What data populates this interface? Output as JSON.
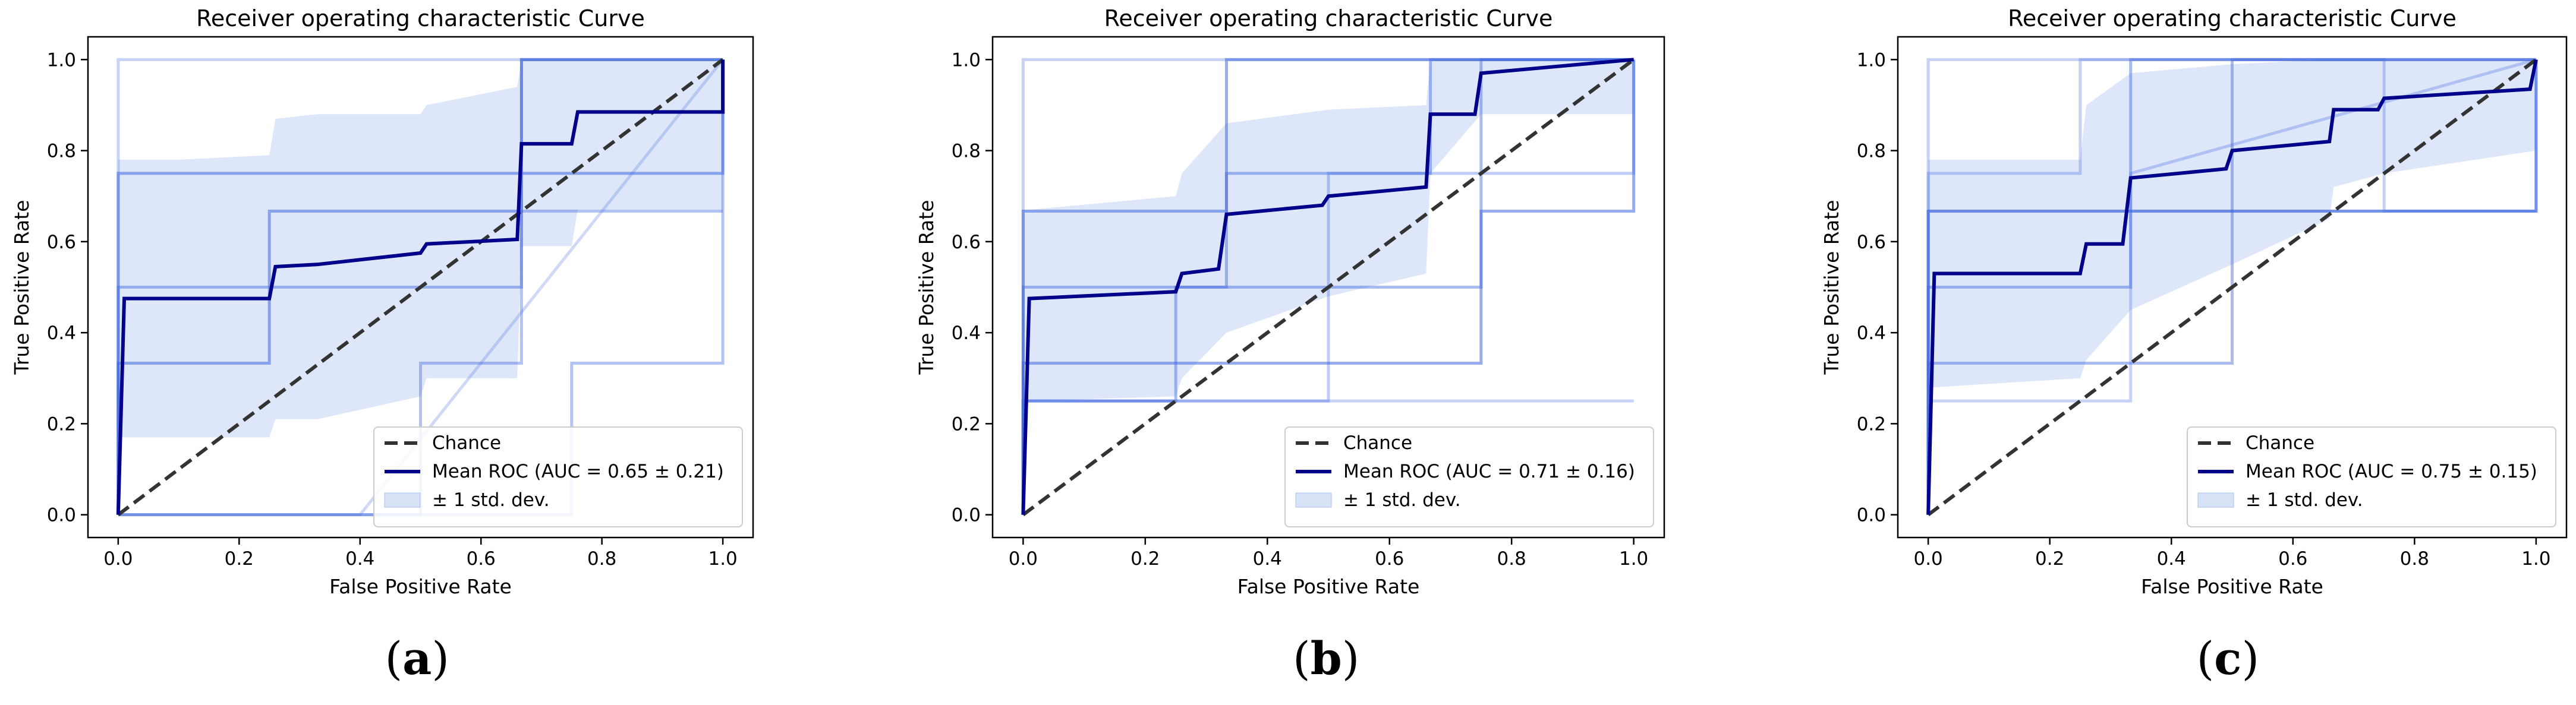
{
  "chart_data": [
    {
      "type": "line",
      "panel_label": "a",
      "title": "Receiver operating characteristic Curve",
      "xlabel": "False Positive Rate",
      "ylabel": "True Positive Rate",
      "xlim": [
        -0.05,
        1.05
      ],
      "ylim": [
        -0.05,
        1.05
      ],
      "xticks": [
        "0.0",
        "0.2",
        "0.4",
        "0.6",
        "0.8",
        "1.0"
      ],
      "yticks": [
        "0.0",
        "0.2",
        "0.4",
        "0.6",
        "0.8",
        "1.0"
      ],
      "legend_position": "lower-right",
      "legend": {
        "chance": "Chance",
        "mean": "Mean ROC (AUC = 0.65 ± 0.21)",
        "std": "± 1 std. dev."
      },
      "colors": {
        "fold": "#4169e1",
        "mean": "#00008b",
        "chance": "#333333",
        "band": "#a9c0f0"
      },
      "chance": {
        "x": [
          0,
          1
        ],
        "y": [
          0,
          1
        ]
      },
      "folds": [
        {
          "x": [
            0,
            0,
            1,
            1
          ],
          "y": [
            0,
            0.75,
            0.75,
            1
          ],
          "opacity": 0.55
        },
        {
          "x": [
            0,
            0,
            0.25,
            0.25,
            0.667,
            0.667,
            1,
            1
          ],
          "y": [
            0,
            0.333,
            0.333,
            0.667,
            0.667,
            1,
            1,
            1
          ],
          "opacity": 0.55
        },
        {
          "x": [
            0,
            0,
            0.667,
            0.667,
            1,
            1
          ],
          "y": [
            0,
            0.5,
            0.5,
            1,
            1,
            1
          ],
          "opacity": 0.45
        },
        {
          "x": [
            0,
            0,
            0.25,
            0.25,
            1
          ],
          "y": [
            0,
            1,
            1,
            1,
            1
          ],
          "opacity": 0.3
        },
        {
          "x": [
            0,
            0.75,
            0.75,
            1,
            1
          ],
          "y": [
            0,
            0,
            0.333,
            0.333,
            1
          ],
          "opacity": 0.4
        },
        {
          "x": [
            0,
            0.5,
            0.5,
            0.667,
            0.667,
            1
          ],
          "y": [
            0,
            0,
            0.333,
            0.333,
            0.667,
            0.667
          ],
          "opacity": 0.4
        },
        {
          "x": [
            0,
            0.4,
            1
          ],
          "y": [
            0,
            0,
            1
          ],
          "opacity": 0.25
        }
      ],
      "mean": {
        "x": [
          0,
          0.01,
          0.25,
          0.26,
          0.33,
          0.5,
          0.51,
          0.66,
          0.667,
          0.75,
          0.76,
          1,
          1
        ],
        "y": [
          0,
          0.475,
          0.475,
          0.545,
          0.55,
          0.575,
          0.595,
          0.605,
          0.815,
          0.815,
          0.885,
          0.885,
          1
        ]
      },
      "band": {
        "x": [
          0,
          0.01,
          0.1,
          0.25,
          0.26,
          0.33,
          0.5,
          0.51,
          0.66,
          0.667,
          0.75,
          0.76,
          1
        ],
        "upper": [
          0.78,
          0.78,
          0.78,
          0.79,
          0.87,
          0.88,
          0.88,
          0.9,
          0.94,
          1,
          1,
          1,
          1
        ],
        "lower": [
          0.17,
          0.17,
          0.17,
          0.17,
          0.21,
          0.21,
          0.26,
          0.3,
          0.3,
          0.59,
          0.59,
          0.67,
          0.67
        ]
      }
    },
    {
      "type": "line",
      "panel_label": "b",
      "title": "Receiver operating characteristic Curve",
      "xlabel": "False Positive Rate",
      "ylabel": "True Positive Rate",
      "xlim": [
        -0.05,
        1.05
      ],
      "ylim": [
        -0.05,
        1.05
      ],
      "xticks": [
        "0.0",
        "0.2",
        "0.4",
        "0.6",
        "0.8",
        "1.0"
      ],
      "yticks": [
        "0.0",
        "0.2",
        "0.4",
        "0.6",
        "0.8",
        "1.0"
      ],
      "legend_position": "lower-right",
      "legend": {
        "chance": "Chance",
        "mean": "Mean ROC (AUC = 0.71 ± 0.16)",
        "std": "± 1 std. dev."
      },
      "colors": {
        "fold": "#4169e1",
        "mean": "#00008b",
        "chance": "#333333",
        "band": "#a9c0f0"
      },
      "chance": {
        "x": [
          0,
          1
        ],
        "y": [
          0,
          1
        ]
      },
      "folds": [
        {
          "x": [
            0,
            0,
            0.333,
            0.333,
            1,
            1
          ],
          "y": [
            0,
            0.667,
            0.667,
            1,
            1,
            1
          ],
          "opacity": 0.55
        },
        {
          "x": [
            0,
            0,
            0.25,
            0.25,
            0.75,
            0.75,
            1
          ],
          "y": [
            0,
            0.25,
            0.25,
            0.5,
            0.5,
            1,
            1
          ],
          "opacity": 0.45
        },
        {
          "x": [
            0,
            0,
            0.333,
            0.333,
            0.667,
            0.667,
            1,
            1
          ],
          "y": [
            0,
            0.5,
            0.5,
            0.75,
            0.75,
            1,
            1,
            1
          ],
          "opacity": 0.45
        },
        {
          "x": [
            0,
            0,
            0.75,
            0.75,
            1,
            1
          ],
          "y": [
            0,
            0.333,
            0.333,
            0.667,
            0.667,
            1
          ],
          "opacity": 0.55
        },
        {
          "x": [
            0,
            0,
            1,
            1
          ],
          "y": [
            0,
            1,
            1,
            1
          ],
          "opacity": 0.3
        },
        {
          "x": [
            0,
            0,
            0.5,
            0.5,
            1,
            1
          ],
          "y": [
            0,
            0.25,
            0.25,
            0.75,
            0.75,
            1
          ],
          "opacity": 0.35
        },
        {
          "x": [
            0,
            0,
            0.667,
            0.667,
            1
          ],
          "y": [
            0,
            0.25,
            0.25,
            0.25,
            0.25
          ],
          "opacity": 0.3
        }
      ],
      "mean": {
        "x": [
          0,
          0.01,
          0.25,
          0.26,
          0.32,
          0.333,
          0.49,
          0.5,
          0.66,
          0.667,
          0.74,
          0.75,
          1
        ],
        "y": [
          0,
          0.475,
          0.49,
          0.53,
          0.54,
          0.66,
          0.68,
          0.7,
          0.72,
          0.88,
          0.88,
          0.97,
          1
        ]
      },
      "band": {
        "x": [
          0,
          0.01,
          0.25,
          0.26,
          0.333,
          0.5,
          0.66,
          0.667,
          0.75,
          1
        ],
        "upper": [
          0.67,
          0.67,
          0.7,
          0.75,
          0.86,
          0.89,
          0.9,
          1,
          1,
          1
        ],
        "lower": [
          0.25,
          0.25,
          0.26,
          0.3,
          0.4,
          0.48,
          0.53,
          0.75,
          0.88,
          0.88
        ]
      }
    },
    {
      "type": "line",
      "panel_label": "c",
      "title": "Receiver operating characteristic Curve",
      "xlabel": "False Positive Rate",
      "ylabel": "True Positive Rate",
      "xlim": [
        -0.05,
        1.05
      ],
      "ylim": [
        -0.05,
        1.05
      ],
      "xticks": [
        "0.0",
        "0.2",
        "0.4",
        "0.6",
        "0.8",
        "1.0"
      ],
      "yticks": [
        "0.0",
        "0.2",
        "0.4",
        "0.6",
        "0.8",
        "1.0"
      ],
      "legend_position": "lower-right",
      "legend": {
        "chance": "Chance",
        "mean": "Mean ROC (AUC = 0.75 ± 0.15)",
        "std": "± 1 std. dev."
      },
      "colors": {
        "fold": "#4169e1",
        "mean": "#00008b",
        "chance": "#333333",
        "band": "#a9c0f0"
      },
      "chance": {
        "x": [
          0,
          1
        ],
        "y": [
          0,
          1
        ]
      },
      "folds": [
        {
          "x": [
            0,
            0,
            1,
            1
          ],
          "y": [
            0,
            0.667,
            0.667,
            1
          ],
          "opacity": 0.55
        },
        {
          "x": [
            0,
            0,
            0.333,
            0.333,
            1,
            1
          ],
          "y": [
            0,
            0.5,
            0.5,
            1,
            1,
            1
          ],
          "opacity": 0.45
        },
        {
          "x": [
            0,
            0,
            0.5,
            0.5,
            1,
            1
          ],
          "y": [
            0,
            0.333,
            0.333,
            1,
            1,
            1
          ],
          "opacity": 0.45
        },
        {
          "x": [
            0,
            0,
            0.25,
            0.25,
            1
          ],
          "y": [
            0,
            0.75,
            0.75,
            1,
            1
          ],
          "opacity": 0.3
        },
        {
          "x": [
            0,
            0,
            0.667,
            0.667,
            1,
            1
          ],
          "y": [
            0,
            0.667,
            0.667,
            0.667,
            0.667,
            1
          ],
          "opacity": 0.4
        },
        {
          "x": [
            0,
            0,
            0.333,
            0.333,
            1
          ],
          "y": [
            0,
            0.25,
            0.25,
            0.75,
            1
          ],
          "opacity": 0.3
        },
        {
          "x": [
            0,
            0,
            0.75,
            0.75,
            1
          ],
          "y": [
            0,
            1,
            1,
            0.667,
            0.667
          ],
          "opacity": 0.3
        }
      ],
      "mean": {
        "x": [
          0,
          0.01,
          0.25,
          0.26,
          0.32,
          0.333,
          0.49,
          0.5,
          0.66,
          0.667,
          0.74,
          0.75,
          0.99,
          1
        ],
        "y": [
          0,
          0.53,
          0.53,
          0.595,
          0.595,
          0.74,
          0.76,
          0.8,
          0.82,
          0.89,
          0.89,
          0.915,
          0.935,
          1
        ]
      },
      "band": {
        "x": [
          0,
          0.01,
          0.25,
          0.26,
          0.333,
          0.5,
          0.66,
          0.667,
          0.75,
          1
        ],
        "upper": [
          0.78,
          0.78,
          0.78,
          0.9,
          0.97,
          0.99,
          1,
          1,
          1,
          1
        ],
        "lower": [
          0.28,
          0.28,
          0.3,
          0.34,
          0.45,
          0.55,
          0.65,
          0.72,
          0.75,
          0.8
        ]
      }
    }
  ]
}
